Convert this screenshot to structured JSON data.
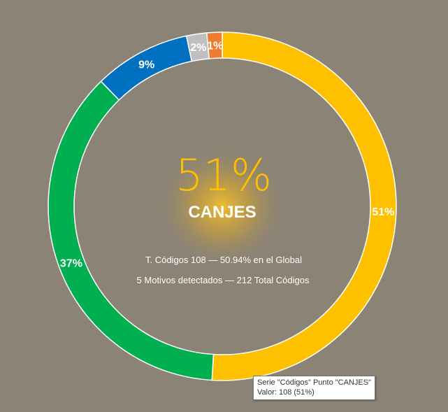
{
  "chart_data": {
    "type": "pie",
    "categories": [
      "CANJES",
      "",
      "",
      "",
      ""
    ],
    "values": [
      108,
      78,
      19,
      4,
      3
    ],
    "labels": [
      "51%",
      "37%",
      "9%",
      "2%",
      "1%"
    ],
    "colors": [
      "#ffc000",
      "#00b050",
      "#0070c0",
      "#bfbfbf",
      "#ed7d31"
    ],
    "total": 212
  },
  "center": {
    "percent": "51%",
    "category": "CANJES",
    "line1": "T. Códigos 108 — 50.94% en el Global",
    "line2": "5 Motivos detectados — 212 Total Códigos"
  },
  "tooltip": {
    "line1": "Serie \"Códigos\" Punto \"CANJES\"",
    "line2": "Valor: 108 (51%)"
  }
}
